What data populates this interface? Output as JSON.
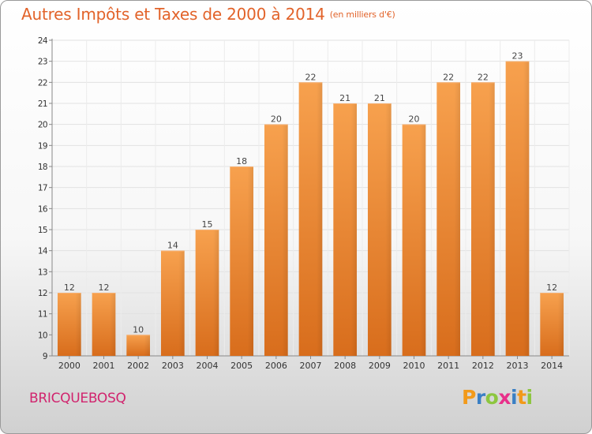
{
  "chart_data": {
    "type": "bar",
    "title": "Autres Impôts et Taxes de 2000 à 2014",
    "subtitle": "(en milliers d'€)",
    "categories": [
      "2000",
      "2001",
      "2002",
      "2003",
      "2004",
      "2005",
      "2006",
      "2007",
      "2008",
      "2009",
      "2010",
      "2011",
      "2012",
      "2013",
      "2014"
    ],
    "values": [
      12,
      12,
      10,
      14,
      15,
      18,
      20,
      22,
      21,
      21,
      20,
      22,
      22,
      23,
      12
    ],
    "ylim": [
      9,
      24
    ],
    "yticks": [
      9,
      10,
      11,
      12,
      13,
      14,
      15,
      16,
      17,
      18,
      19,
      20,
      21,
      22,
      23,
      24
    ],
    "grid": true,
    "bar_color": "#f0903a",
    "title_color": "#e2632a"
  },
  "footer": {
    "commune": "BRICQUEBOSQ",
    "commune_color": "#d1246e"
  },
  "logo": {
    "text": "Proxiti",
    "letters": [
      {
        "ch": "P",
        "color": "#f29a1a"
      },
      {
        "ch": "r",
        "color": "#3a7fc4"
      },
      {
        "ch": "o",
        "color": "#8dc63f"
      },
      {
        "ch": "x",
        "color": "#e8308a"
      },
      {
        "ch": "i",
        "color": "#3a7fc4"
      },
      {
        "ch": "t",
        "color": "#f29a1a"
      },
      {
        "ch": "i",
        "color": "#8dc63f"
      }
    ]
  }
}
